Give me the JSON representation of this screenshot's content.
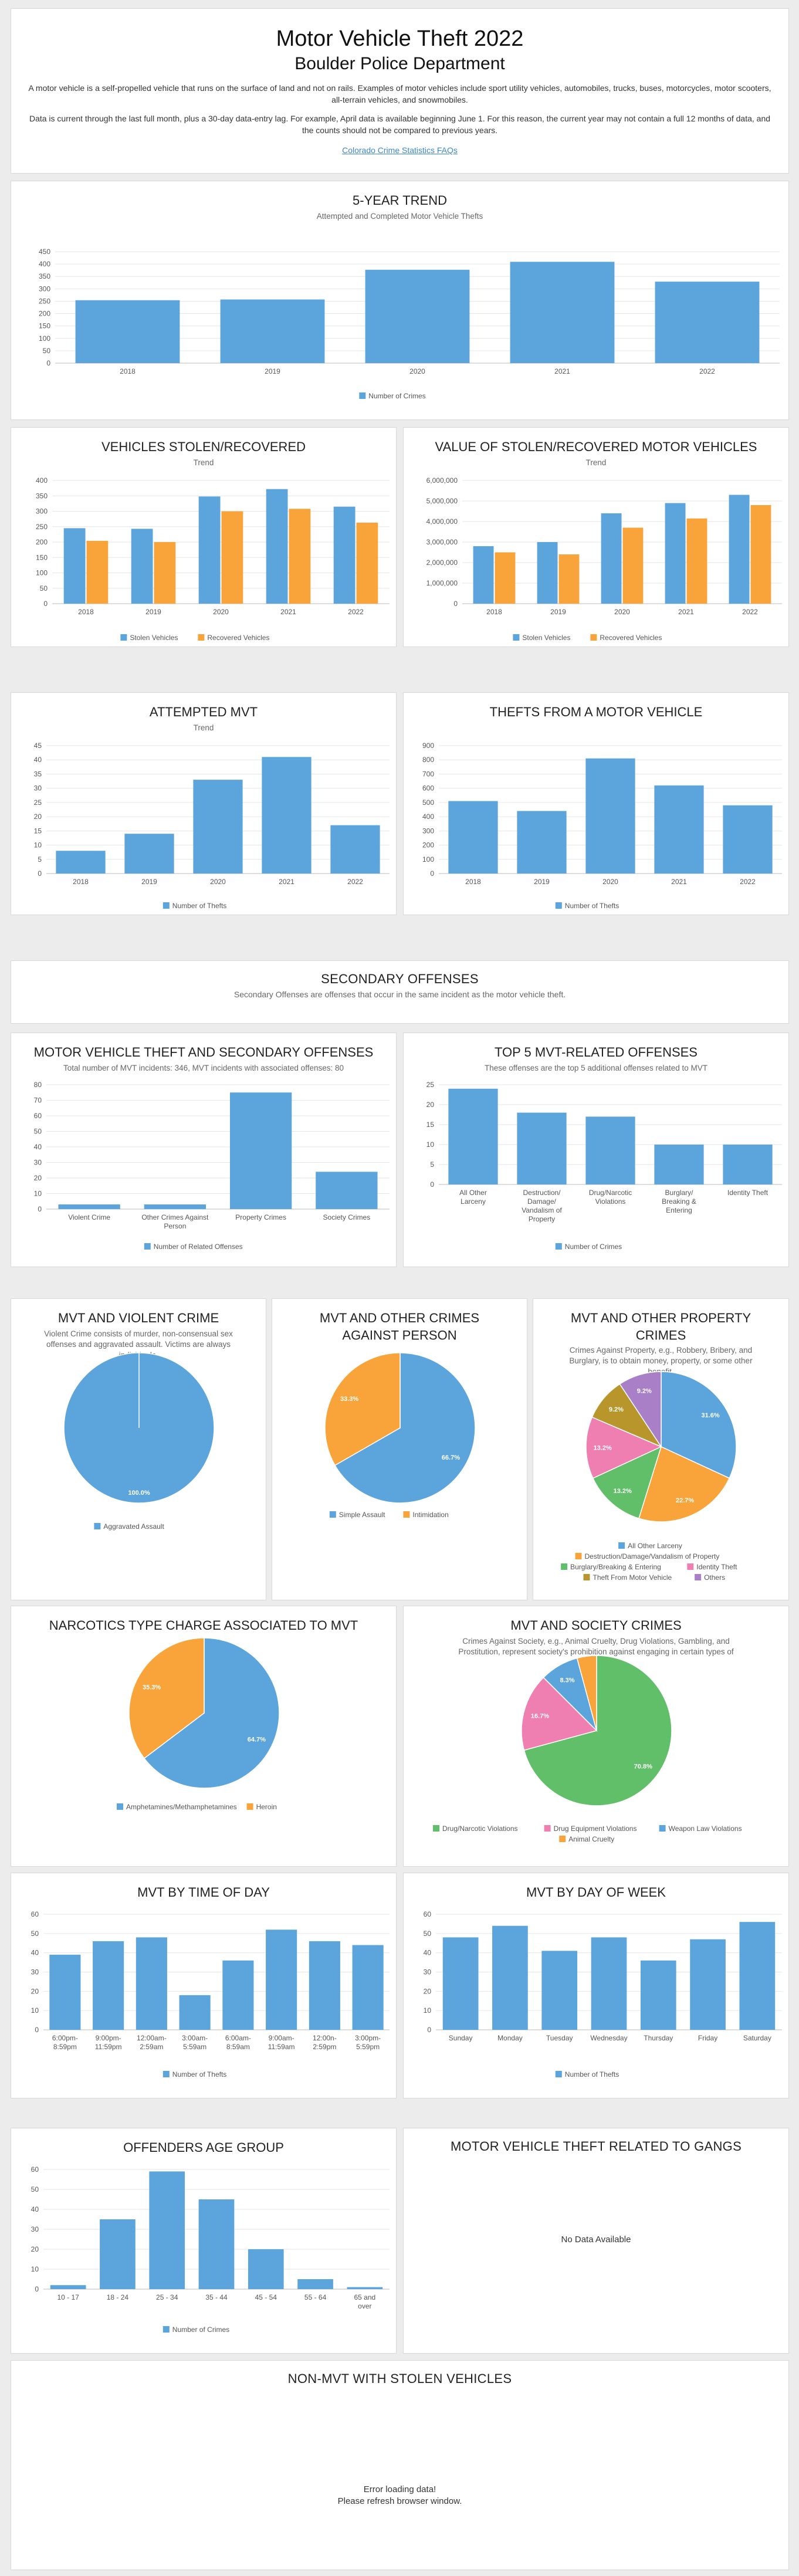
{
  "header": {
    "title": "Motor Vehicle Theft 2022",
    "department": "Boulder Police Department",
    "paragraph1": "A motor vehicle is a self-propelled vehicle that runs on the surface of land and not on rails. Examples of motor vehicles include sport utility vehicles, automobiles, trucks, buses, motorcycles, motor scooters, all-terrain vehicles, and snowmobiles.",
    "paragraph2": "Data is current through the last full month, plus a 30-day data-entry lag. For example, April data is available beginning June 1. For this reason, the current year may not contain a full 12 months of data, and the counts should not be compared to previous years.",
    "faq_link": "Colorado Crime Statistics FAQs"
  },
  "colors": {
    "blue": "#5ba4dc",
    "orange": "#f9a43a",
    "green": "#62bf69",
    "pink": "#ee7fb0",
    "olive": "#b8962c",
    "purple": "#a97fc8"
  },
  "secondary": {
    "title": "SECONDARY OFFENSES",
    "subtitle": "Secondary Offenses are offenses that occur in the same incident as the motor vehicle theft."
  },
  "gangs": {
    "title": "MOTOR VEHICLE THEFT RELATED TO GANGS",
    "message": "No Data Available"
  },
  "nonmvt": {
    "title": "NON-MVT WITH STOLEN VEHICLES",
    "message_line1": "Error loading data!",
    "message_line2": "Please refresh browser window."
  },
  "chart_data": [
    {
      "id": "trend",
      "type": "bar",
      "title": "5-YEAR TREND",
      "subtitle": "Attempted and Completed Motor Vehicle Thefts",
      "categories": [
        "2018",
        "2019",
        "2020",
        "2021",
        "2022"
      ],
      "series": [
        {
          "name": "Number of Crimes",
          "color": "#5ba4dc",
          "values": [
            254,
            257,
            377,
            409,
            329
          ]
        }
      ],
      "yticks": [
        "0",
        "50",
        "100",
        "150",
        "200",
        "250",
        "300",
        "350",
        "400",
        "450"
      ],
      "ylim": [
        0,
        450
      ]
    },
    {
      "id": "stolen",
      "type": "bar",
      "title": "VEHICLES STOLEN/RECOVERED",
      "subtitle": "Trend",
      "categories": [
        "2018",
        "2019",
        "2020",
        "2021",
        "2022"
      ],
      "series": [
        {
          "name": "Stolen Vehicles",
          "color": "#5ba4dc",
          "values": [
            245,
            243,
            348,
            372,
            315
          ]
        },
        {
          "name": "Recovered Vehicles",
          "color": "#f9a43a",
          "values": [
            204,
            200,
            300,
            308,
            263
          ]
        }
      ],
      "yticks": [
        "0",
        "50",
        "100",
        "150",
        "200",
        "250",
        "300",
        "350",
        "400"
      ],
      "ylim": [
        0,
        400
      ]
    },
    {
      "id": "value",
      "type": "bar",
      "title": "VALUE OF STOLEN/RECOVERED MOTOR VEHICLES",
      "subtitle": "Trend",
      "categories": [
        "2018",
        "2019",
        "2020",
        "2021",
        "2022"
      ],
      "series": [
        {
          "name": "Stolen Vehicles",
          "color": "#5ba4dc",
          "values": [
            2800000,
            3000000,
            4400000,
            4900000,
            5300000
          ]
        },
        {
          "name": "Recovered Vehicles",
          "color": "#f9a43a",
          "values": [
            2500000,
            2400000,
            3700000,
            4150000,
            4800000
          ]
        }
      ],
      "yticks": [
        "0",
        "1,000,000",
        "2,000,000",
        "3,000,000",
        "4,000,000",
        "5,000,000",
        "6,000,000"
      ],
      "ylim": [
        0,
        6000000
      ]
    },
    {
      "id": "attempted",
      "type": "bar",
      "title": "ATTEMPTED MVT",
      "subtitle": "Trend",
      "categories": [
        "2018",
        "2019",
        "2020",
        "2021",
        "2022"
      ],
      "series": [
        {
          "name": "Number of Thefts",
          "color": "#5ba4dc",
          "values": [
            8,
            14,
            33,
            41,
            17
          ]
        }
      ],
      "yticks": [
        "0",
        "5",
        "10",
        "15",
        "20",
        "25",
        "30",
        "35",
        "40",
        "45"
      ],
      "ylim": [
        0,
        45
      ]
    },
    {
      "id": "thefts_from",
      "type": "bar",
      "title": "THEFTS FROM A MOTOR VEHICLE",
      "subtitle": "",
      "categories": [
        "2018",
        "2019",
        "2020",
        "2021",
        "2022"
      ],
      "series": [
        {
          "name": "Number of Thefts",
          "color": "#5ba4dc",
          "values": [
            510,
            440,
            810,
            620,
            480
          ]
        }
      ],
      "yticks": [
        "0",
        "100",
        "200",
        "300",
        "400",
        "500",
        "600",
        "700",
        "800",
        "900"
      ],
      "ylim": [
        0,
        900
      ]
    },
    {
      "id": "mvt_secondary",
      "type": "bar",
      "title": "MOTOR VEHICLE THEFT AND SECONDARY OFFENSES",
      "subtitle": "Total number of MVT incidents: 346, MVT incidents with associated offenses: 80",
      "categories": [
        [
          "Violent Crime"
        ],
        [
          "Other Crimes Against",
          "Person"
        ],
        [
          "Property Crimes"
        ],
        [
          "Society Crimes"
        ]
      ],
      "series": [
        {
          "name": "Number of Related Offenses",
          "color": "#5ba4dc",
          "values": [
            3,
            3,
            75,
            24
          ]
        }
      ],
      "yticks": [
        "0",
        "10",
        "20",
        "30",
        "40",
        "50",
        "60",
        "70",
        "80"
      ],
      "ylim": [
        0,
        80
      ]
    },
    {
      "id": "top5",
      "type": "bar",
      "title": "TOP 5 MVT-RELATED OFFENSES",
      "subtitle": "These offenses are the top 5 additional offenses related to MVT",
      "categories": [
        [
          "All Other",
          "Larceny"
        ],
        [
          "Destruction/",
          "Damage/",
          "Vandalism of",
          "Property"
        ],
        [
          "Drug/Narcotic",
          "Violations"
        ],
        [
          "Burglary/",
          "Breaking &",
          "Entering"
        ],
        [
          "Identity Theft"
        ]
      ],
      "series": [
        {
          "name": "Number of Crimes",
          "color": "#5ba4dc",
          "values": [
            24,
            18,
            17,
            10,
            10
          ]
        }
      ],
      "yticks": [
        "0",
        "5",
        "10",
        "15",
        "20",
        "25"
      ],
      "ylim": [
        0,
        25
      ]
    },
    {
      "id": "violent",
      "type": "pie",
      "title": "MVT AND VIOLENT CRIME",
      "subtitle": "Violent Crime consists of murder, non-consensual sex offenses and aggravated assault. Victims are always individuals.",
      "slices": [
        {
          "label": "Aggravated Assault",
          "value": 100.0,
          "color": "#5ba4dc",
          "text": "100.0%"
        }
      ]
    },
    {
      "id": "person",
      "type": "pie",
      "title": "MVT AND OTHER CRIMES AGAINST PERSON",
      "subtitle": "",
      "slices": [
        {
          "label": "Simple Assault",
          "value": 66.7,
          "color": "#5ba4dc",
          "text": "66.7%"
        },
        {
          "label": "Intimidation",
          "value": 33.3,
          "color": "#f9a43a",
          "text": "33.3%"
        }
      ]
    },
    {
      "id": "property",
      "type": "pie",
      "title": "MVT AND OTHER PROPERTY CRIMES",
      "subtitle": "Crimes Against Property, e.g., Robbery, Bribery, and Burglary, is to obtain money, property, or some other benefit.",
      "slices": [
        {
          "label": "All Other Larceny",
          "value": 31.6,
          "color": "#5ba4dc",
          "text": "31.6%"
        },
        {
          "label": "Destruction/Damage/Vandalism of Property",
          "value": 22.7,
          "color": "#f9a43a",
          "text": "22.7%"
        },
        {
          "label": "Burglary/Breaking & Entering",
          "value": 13.2,
          "color": "#62bf69",
          "text": "13.2%"
        },
        {
          "label": "Identity Theft",
          "value": 13.2,
          "color": "#ee7fb0",
          "text": "13.2%"
        },
        {
          "label": "Theft From Motor Vehicle",
          "value": 9.2,
          "color": "#b8962c",
          "text": "9.2%"
        },
        {
          "label": "Others",
          "value": 9.2,
          "color": "#a97fc8",
          "text": "9.2%"
        }
      ]
    },
    {
      "id": "narcotics",
      "type": "pie",
      "title": "NARCOTICS TYPE CHARGE ASSOCIATED TO MVT",
      "subtitle": "",
      "slices": [
        {
          "label": "Amphetamines/Methamphetamines",
          "value": 64.7,
          "color": "#5ba4dc",
          "text": "64.7%"
        },
        {
          "label": "Heroin",
          "value": 35.3,
          "color": "#f9a43a",
          "text": "35.3%"
        }
      ]
    },
    {
      "id": "society",
      "type": "pie",
      "title": "MVT AND SOCIETY CRIMES",
      "subtitle": "Crimes Against Society, e.g., Animal Cruelty, Drug Violations, Gambling, and Prostitution, represent society's prohibition against engaging in certain types of activity.",
      "slices": [
        {
          "label": "Drug/Narcotic Violations",
          "value": 70.8,
          "color": "#62bf69",
          "text": "70.8%"
        },
        {
          "label": "Drug Equipment Violations",
          "value": 16.7,
          "color": "#ee7fb0",
          "text": "16.7%"
        },
        {
          "label": "Weapon Law Violations",
          "value": 8.3,
          "color": "#5ba4dc",
          "text": "8.3%"
        },
        {
          "label": "Animal Cruelty",
          "value": 4.2,
          "color": "#f9a43a",
          "text": ""
        }
      ]
    },
    {
      "id": "time_of_day",
      "type": "bar",
      "title": "MVT BY TIME OF DAY",
      "subtitle": "",
      "categories": [
        [
          "6:00pm-",
          "8:59pm"
        ],
        [
          "9:00pm-",
          "11:59pm"
        ],
        [
          "12:00am-",
          "2:59am"
        ],
        [
          "3:00am-",
          "5:59am"
        ],
        [
          "6:00am-",
          "8:59am"
        ],
        [
          "9:00am-",
          "11:59am"
        ],
        [
          "12:00n-",
          "2:59pm"
        ],
        [
          "3:00pm-",
          "5:59pm"
        ]
      ],
      "series": [
        {
          "name": "Number of Thefts",
          "color": "#5ba4dc",
          "values": [
            39,
            46,
            48,
            18,
            36,
            52,
            46,
            44
          ]
        }
      ],
      "yticks": [
        "0",
        "10",
        "20",
        "30",
        "40",
        "50",
        "60"
      ],
      "ylim": [
        0,
        60
      ]
    },
    {
      "id": "day_of_week",
      "type": "bar",
      "title": "MVT BY DAY OF WEEK",
      "subtitle": "",
      "categories": [
        [
          "Sunday"
        ],
        [
          "Monday"
        ],
        [
          "Tuesday"
        ],
        [
          "Wednesday"
        ],
        [
          "Thursday"
        ],
        [
          "Friday"
        ],
        [
          "Saturday"
        ]
      ],
      "series": [
        {
          "name": "Number of Thefts",
          "color": "#5ba4dc",
          "values": [
            48,
            54,
            41,
            48,
            36,
            47,
            56
          ]
        }
      ],
      "yticks": [
        "0",
        "10",
        "20",
        "30",
        "40",
        "50",
        "60"
      ],
      "ylim": [
        0,
        60
      ]
    },
    {
      "id": "age",
      "type": "bar",
      "title": "OFFENDERS AGE GROUP",
      "subtitle": "",
      "categories": [
        [
          "10 - 17"
        ],
        [
          "18 - 24"
        ],
        [
          "25 - 34"
        ],
        [
          "35 - 44"
        ],
        [
          "45 - 54"
        ],
        [
          "55 - 64"
        ],
        [
          "65 and",
          "over"
        ]
      ],
      "series": [
        {
          "name": "Number of Crimes",
          "color": "#5ba4dc",
          "values": [
            2,
            35,
            59,
            45,
            20,
            5,
            1
          ]
        }
      ],
      "yticks": [
        "0",
        "10",
        "20",
        "30",
        "40",
        "50",
        "60"
      ],
      "ylim": [
        0,
        60
      ]
    }
  ]
}
